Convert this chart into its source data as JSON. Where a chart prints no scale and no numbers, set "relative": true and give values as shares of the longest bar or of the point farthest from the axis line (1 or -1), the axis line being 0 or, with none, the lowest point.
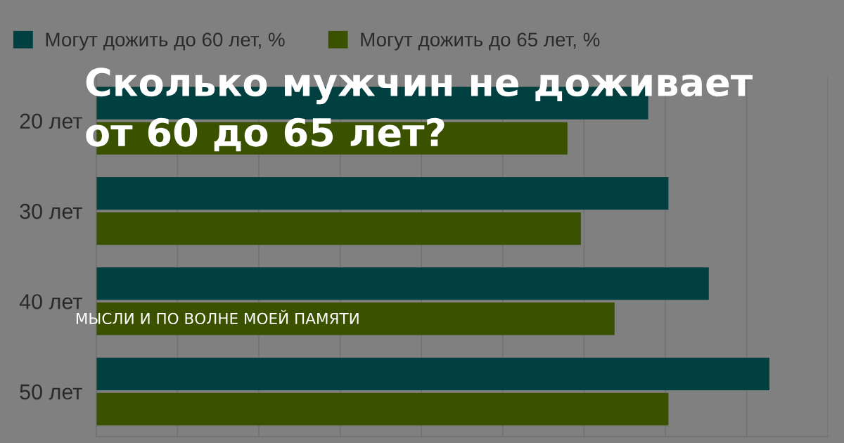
{
  "chart_data": {
    "type": "bar",
    "orientation": "horizontal",
    "relative": true,
    "title": "Сколько мужчин не доживает\nот 60 до 65 лет?",
    "annotations": [
      "МЫСЛИ И ПО ВОЛНЕ МОЕЙ ПАМЯТИ"
    ],
    "categories": [
      "20 лет",
      "30 лет",
      "40 лет",
      "50 лет"
    ],
    "series": [
      {
        "name": "Могут дожить до 60 лет, %",
        "color": "#004040",
        "values": [
          0.82,
          0.85,
          0.91,
          1.0
        ]
      },
      {
        "name": "Могут дожить до 65 лет, %",
        "color": "#3a5200",
        "values": [
          0.7,
          0.72,
          0.77,
          0.85
        ]
      }
    ],
    "grid": "x",
    "legend": "top left"
  }
}
